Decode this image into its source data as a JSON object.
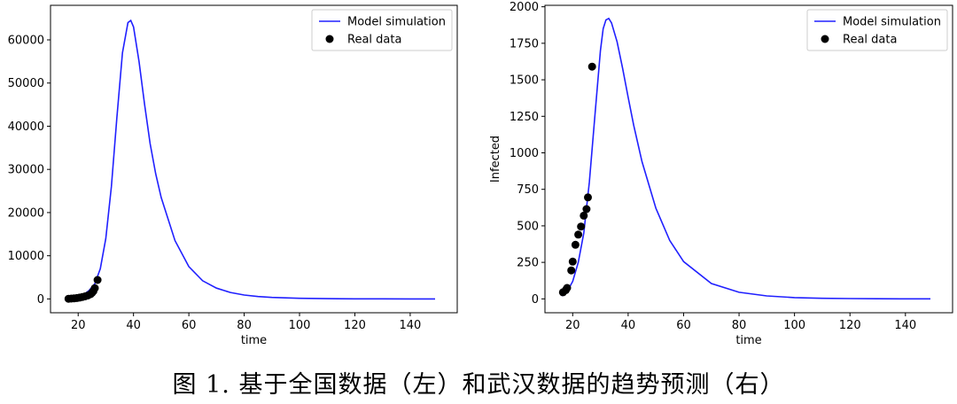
{
  "caption": "图 1. 基于全国数据（左）和武汉数据的趋势预测（右）",
  "chart_data": [
    {
      "type": "line",
      "title": "",
      "xlabel": "time",
      "ylabel": "",
      "xlim": [
        10,
        157
      ],
      "ylim": [
        -3200,
        68000
      ],
      "xticks": [
        20,
        40,
        60,
        80,
        100,
        120,
        140
      ],
      "yticks": [
        0,
        10000,
        20000,
        30000,
        40000,
        50000,
        60000
      ],
      "legend": {
        "position": "top-right",
        "entries": [
          "Model simulation",
          "Real data"
        ]
      },
      "colors": {
        "model": "#2020ff",
        "real": "#000000"
      },
      "series": [
        {
          "name": "Model simulation",
          "x": [
            16,
            18,
            20,
            22,
            24,
            26,
            28,
            30,
            32,
            34,
            36,
            38,
            39,
            40,
            42,
            44,
            46,
            48,
            50,
            55,
            60,
            65,
            70,
            75,
            80,
            85,
            90,
            100,
            110,
            120,
            130,
            140,
            149
          ],
          "y": [
            0,
            200,
            500,
            1000,
            2000,
            3500,
            7000,
            14000,
            26000,
            42000,
            57000,
            64000,
            64500,
            63000,
            55000,
            45000,
            36000,
            29000,
            23500,
            13500,
            7500,
            4200,
            2500,
            1500,
            900,
            550,
            350,
            150,
            70,
            30,
            15,
            8,
            5
          ]
        },
        {
          "name": "Real data",
          "x": [
            16.5,
            17.5,
            18.5,
            19.5,
            20.5,
            21.5,
            22.5,
            23.5,
            24.5,
            25,
            25.5,
            26,
            27
          ],
          "y": [
            50,
            80,
            120,
            200,
            300,
            450,
            600,
            800,
            1100,
            1400,
            1800,
            2500,
            4400
          ]
        }
      ]
    },
    {
      "type": "line",
      "title": "",
      "xlabel": "time",
      "ylabel": "Infected",
      "xlim": [
        10,
        157
      ],
      "ylim": [
        -95,
        2010
      ],
      "xticks": [
        20,
        40,
        60,
        80,
        100,
        120,
        140
      ],
      "yticks": [
        0,
        250,
        500,
        750,
        1000,
        1250,
        1500,
        1750,
        2000
      ],
      "legend": {
        "position": "top-right",
        "entries": [
          "Model simulation",
          "Real data"
        ]
      },
      "colors": {
        "model": "#2020ff",
        "real": "#000000"
      },
      "series": [
        {
          "name": "Model simulation",
          "x": [
            16,
            18,
            20,
            22,
            24,
            26,
            28,
            30,
            31,
            32,
            33,
            34,
            36,
            38,
            40,
            42,
            45,
            50,
            55,
            60,
            70,
            80,
            90,
            100,
            110,
            120,
            130,
            140,
            149
          ],
          "y": [
            20,
            50,
            120,
            250,
            450,
            800,
            1250,
            1700,
            1850,
            1910,
            1920,
            1890,
            1760,
            1580,
            1380,
            1190,
            940,
            620,
            400,
            255,
            105,
            45,
            20,
            9,
            4,
            2,
            1,
            0,
            0
          ]
        },
        {
          "name": "Real data",
          "x": [
            16.5,
            17.5,
            18,
            19.5,
            20,
            21,
            22,
            23,
            24,
            25,
            25.5,
            27
          ],
          "y": [
            45,
            60,
            75,
            195,
            255,
            370,
            440,
            495,
            570,
            615,
            695,
            1590
          ]
        }
      ]
    }
  ]
}
